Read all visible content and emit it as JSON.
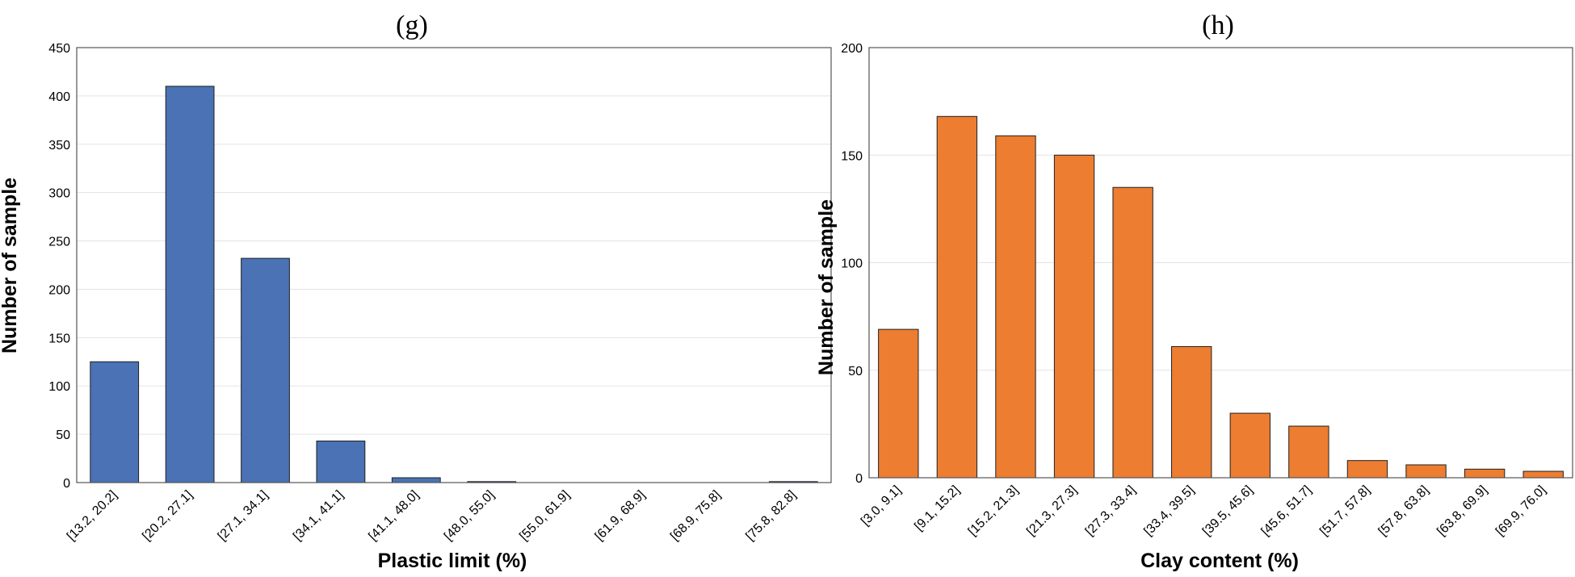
{
  "chart_data": [
    {
      "type": "bar",
      "panel": "(g)",
      "xlabel": "Plastic limit (%)",
      "ylabel": "Number of sample",
      "ylim": [
        0,
        450
      ],
      "yticks": [
        0,
        50,
        100,
        150,
        200,
        250,
        300,
        350,
        400,
        450
      ],
      "grid": true,
      "color": "#4a72b5",
      "categories": [
        "[13.2, 20.2]",
        "[20.2, 27.1]",
        "[27.1, 34.1]",
        "[34.1, 41.1]",
        "[41.1, 48.0]",
        "[48.0, 55.0]",
        "[55.0, 61.9]",
        "[61.9, 68.9]",
        "[68.9, 75.8]",
        "[75.8, 82.8]"
      ],
      "values": [
        125,
        410,
        232,
        43,
        5,
        1,
        0,
        0,
        0,
        1
      ]
    },
    {
      "type": "bar",
      "panel": "(h)",
      "xlabel": "Clay content (%)",
      "ylabel": "Number of sample",
      "ylim": [
        0,
        200
      ],
      "yticks": [
        0,
        50,
        100,
        150,
        200
      ],
      "grid": true,
      "color": "#ed7d31",
      "categories": [
        "[3.0, 9.1]",
        "[9.1, 15.2]",
        "[15.2, 21.3]",
        "[21.3, 27.3]",
        "[27.3, 33.4]",
        "[33.4, 39.5]",
        "[39.5, 45.6]",
        "[45.6, 51.7]",
        "[51.7, 57.8]",
        "[57.8, 63.8]",
        "[63.8, 69.9]",
        "[69.9, 76.0]"
      ],
      "values": [
        69,
        168,
        159,
        150,
        135,
        61,
        30,
        24,
        8,
        6,
        4,
        3
      ]
    }
  ]
}
